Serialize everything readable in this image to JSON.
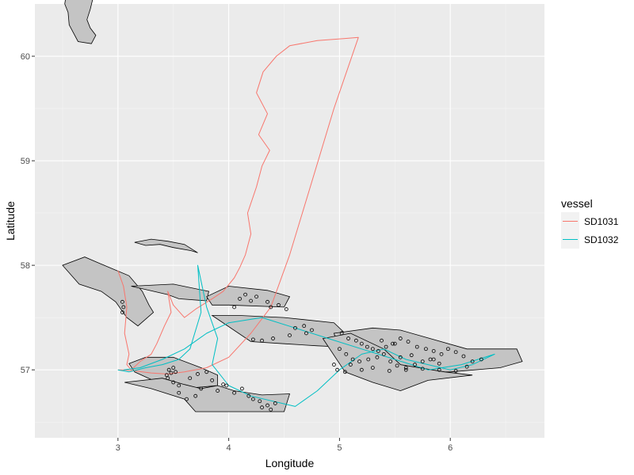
{
  "chart_data": {
    "type": "line",
    "title": "",
    "xlabel": "Longitude",
    "ylabel": "Latitude",
    "xlim": [
      2.25,
      6.85
    ],
    "ylim": [
      56.35,
      60.5
    ],
    "x_ticks": [
      3,
      4,
      5,
      6
    ],
    "x_tick_labels": [
      "3",
      "4",
      "5",
      "6"
    ],
    "y_ticks": [
      57,
      58,
      59,
      60
    ],
    "y_tick_labels": [
      "57",
      "58",
      "59",
      "60"
    ],
    "grid": true,
    "background": "#ebebeb",
    "legend": {
      "title": "vessel",
      "position": "right",
      "entries": [
        "SD1031",
        "SD1032"
      ]
    },
    "series": [
      {
        "name": "SD1031",
        "color": "#F8766D",
        "x": [
          3.0,
          3.05,
          3.08,
          3.06,
          3.1,
          3.08,
          3.12,
          3.2,
          3.3,
          3.35,
          3.42,
          3.48,
          3.45,
          3.5,
          3.6,
          3.7,
          3.85,
          3.95,
          4.05,
          4.1,
          4.15,
          4.2,
          4.17,
          4.25,
          4.3,
          4.37,
          4.27,
          4.35,
          4.25,
          4.31,
          4.43,
          4.55,
          4.8,
          5.05,
          5.17,
          4.95,
          4.75,
          4.55,
          4.38,
          4.2,
          4.0,
          3.8,
          3.6,
          3.45,
          3.3,
          3.15,
          3.05,
          3.0
        ],
        "y": [
          57.95,
          57.8,
          57.6,
          57.35,
          57.15,
          57.05,
          57.0,
          57.08,
          57.15,
          57.25,
          57.42,
          57.55,
          57.75,
          57.62,
          57.5,
          57.58,
          57.68,
          57.75,
          57.88,
          57.98,
          58.1,
          58.3,
          58.5,
          58.75,
          58.95,
          59.1,
          59.25,
          59.45,
          59.65,
          59.85,
          60.0,
          60.1,
          60.15,
          60.17,
          60.18,
          59.5,
          58.8,
          58.1,
          57.6,
          57.35,
          57.12,
          57.02,
          56.98,
          56.96,
          56.97,
          56.99,
          57.0,
          57.0
        ]
      },
      {
        "name": "SD1032",
        "color": "#00BFC4",
        "x": [
          3.0,
          3.1,
          3.25,
          3.4,
          3.55,
          3.65,
          3.75,
          3.72,
          3.8,
          3.9,
          3.85,
          4.0,
          4.2,
          4.4,
          4.6,
          4.8,
          5.0,
          5.2,
          5.4,
          5.6,
          5.8,
          6.0,
          6.2,
          6.4,
          6.1,
          5.8,
          5.5,
          5.2,
          4.9,
          4.6,
          4.3,
          4.0,
          3.8,
          3.6,
          3.4,
          3.2,
          3.05
        ],
        "y": [
          57.0,
          56.98,
          57.02,
          57.05,
          57.1,
          57.2,
          57.55,
          58.0,
          57.6,
          57.3,
          57.05,
          56.85,
          56.75,
          56.7,
          56.65,
          56.8,
          57.0,
          57.15,
          57.2,
          57.1,
          57.05,
          57.0,
          57.05,
          57.15,
          57.05,
          57.0,
          57.1,
          57.2,
          57.3,
          57.4,
          57.5,
          57.45,
          57.35,
          57.2,
          57.1,
          57.02,
          57.0
        ]
      }
    ],
    "polygons": [
      {
        "fill": "#c4c4c4",
        "x": [
          2.52,
          2.75,
          2.78,
          2.75,
          2.72,
          2.75,
          2.8,
          2.76,
          2.64,
          2.56,
          2.55,
          2.52,
          2.53
        ],
        "y": [
          60.57,
          60.67,
          60.58,
          60.45,
          60.35,
          60.27,
          60.2,
          60.12,
          60.14,
          60.3,
          60.42,
          60.5,
          60.57
        ]
      },
      {
        "fill": "#c4c4c4",
        "x": [
          2.5,
          2.7,
          2.92,
          3.1,
          3.22,
          3.28,
          3.32,
          3.18,
          3.08,
          2.98,
          2.85,
          2.65,
          2.5
        ],
        "y": [
          58.0,
          58.08,
          57.98,
          57.9,
          57.75,
          57.62,
          57.55,
          57.42,
          57.5,
          57.65,
          57.75,
          57.82,
          58.0
        ]
      },
      {
        "fill": "#c4c4c4",
        "x": [
          3.15,
          3.3,
          3.45,
          3.6,
          3.72,
          3.66,
          3.5,
          3.38,
          3.25,
          3.15
        ],
        "y": [
          58.22,
          58.25,
          58.23,
          58.2,
          58.12,
          58.14,
          58.17,
          58.2,
          58.19,
          58.22
        ]
      },
      {
        "fill": "#c4c4c4",
        "x": [
          3.12,
          3.5,
          3.82,
          3.8,
          3.55,
          3.45,
          3.12
        ],
        "y": [
          57.8,
          57.82,
          57.75,
          57.66,
          57.68,
          57.72,
          57.8
        ]
      },
      {
        "fill": "#c4c4c4",
        "x": [
          3.8,
          4.0,
          4.35,
          4.55,
          4.5,
          4.0,
          3.85,
          3.8
        ],
        "y": [
          57.7,
          57.8,
          57.76,
          57.7,
          57.6,
          57.62,
          57.62,
          57.7
        ]
      },
      {
        "fill": "#c4c4c4",
        "x": [
          3.85,
          4.1,
          4.5,
          4.95,
          5.05,
          5.0,
          4.8,
          4.5,
          4.2,
          3.85
        ],
        "y": [
          57.52,
          57.52,
          57.5,
          57.45,
          57.35,
          57.22,
          57.23,
          57.25,
          57.27,
          57.52
        ]
      },
      {
        "fill": "#c4c4c4",
        "x": [
          4.95,
          5.3,
          5.55,
          6.15,
          6.6,
          6.65,
          6.45,
          6.0,
          5.7,
          5.35,
          5.0,
          4.95
        ],
        "y": [
          57.35,
          57.4,
          57.38,
          57.2,
          57.2,
          57.08,
          57.02,
          56.98,
          56.98,
          57.05,
          57.2,
          57.35
        ]
      },
      {
        "fill": "#c4c4c4",
        "x": [
          4.85,
          5.1,
          5.4,
          5.55,
          5.95,
          6.2,
          5.8,
          5.55,
          5.3,
          5.05,
          4.85
        ],
        "y": [
          57.3,
          57.35,
          57.2,
          57.05,
          56.98,
          56.95,
          56.9,
          56.8,
          56.88,
          56.98,
          57.3
        ]
      },
      {
        "fill": "#c4c4c4",
        "x": [
          3.1,
          3.25,
          3.5,
          3.75,
          3.9,
          3.9,
          3.6,
          3.4,
          3.15,
          3.1
        ],
        "y": [
          57.06,
          57.12,
          57.12,
          57.02,
          56.95,
          56.85,
          56.82,
          56.86,
          56.98,
          57.06
        ]
      },
      {
        "fill": "#c4c4c4",
        "x": [
          3.06,
          3.4,
          3.6,
          3.75,
          3.9,
          4.05,
          4.3,
          4.55,
          4.5,
          4.1,
          3.7,
          3.6,
          3.3,
          3.06
        ],
        "y": [
          56.88,
          56.92,
          56.86,
          56.82,
          56.85,
          56.8,
          56.76,
          56.77,
          56.6,
          56.6,
          56.6,
          56.72,
          56.82,
          56.88
        ]
      }
    ],
    "points": {
      "x": [
        3.04,
        3.05,
        3.04,
        3.44,
        3.46,
        3.48,
        3.5,
        3.52,
        3.45,
        3.5,
        3.55,
        3.65,
        3.72,
        3.8,
        3.75,
        3.85,
        3.9,
        3.95,
        3.7,
        3.62,
        3.55,
        3.98,
        4.05,
        4.12,
        4.18,
        4.22,
        4.28,
        4.35,
        4.42,
        4.38,
        4.3,
        4.1,
        4.15,
        4.25,
        4.35,
        4.45,
        4.05,
        4.2,
        4.38,
        4.52,
        4.6,
        4.68,
        4.75,
        4.7,
        4.55,
        4.4,
        4.3,
        4.22,
        5.02,
        5.08,
        5.15,
        5.2,
        5.25,
        5.3,
        5.35,
        5.42,
        5.48,
        5.55,
        5.62,
        5.7,
        5.78,
        5.85,
        5.92,
        5.98,
        6.05,
        6.12,
        6.2,
        6.28,
        5.1,
        5.18,
        5.26,
        5.34,
        5.4,
        5.46,
        5.52,
        5.6,
        5.68,
        5.75,
        5.82,
        5.9,
        5.0,
        5.06,
        5.12,
        4.95,
        4.98,
        5.05,
        5.2,
        5.3,
        5.45,
        5.6,
        5.75,
        5.9,
        6.05,
        6.15,
        5.55,
        5.65,
        5.85,
        5.5,
        5.38
      ],
      "y": [
        57.65,
        57.6,
        57.55,
        56.95,
        57.0,
        56.97,
        57.02,
        56.98,
        56.92,
        56.88,
        56.85,
        56.92,
        56.96,
        56.98,
        56.82,
        56.9,
        56.8,
        56.86,
        56.75,
        56.72,
        56.78,
        56.85,
        56.78,
        56.82,
        56.75,
        56.72,
        56.7,
        56.66,
        56.68,
        56.62,
        56.64,
        57.68,
        57.72,
        57.7,
        57.65,
        57.62,
        57.6,
        57.66,
        57.6,
        57.58,
        57.4,
        57.42,
        57.38,
        57.35,
        57.33,
        57.3,
        57.28,
        57.29,
        57.35,
        57.3,
        57.28,
        57.25,
        57.22,
        57.2,
        57.18,
        57.22,
        57.25,
        57.3,
        57.27,
        57.22,
        57.2,
        57.18,
        57.15,
        57.2,
        57.17,
        57.13,
        57.08,
        57.1,
        57.05,
        57.08,
        57.1,
        57.12,
        57.15,
        57.08,
        57.04,
        57.02,
        57.05,
        57.08,
        57.1,
        57.06,
        57.2,
        57.15,
        57.1,
        57.05,
        57.0,
        56.98,
        57.0,
        57.02,
        56.99,
        57.0,
        57.01,
        57.0,
        56.99,
        57.03,
        57.12,
        57.14,
        57.1,
        57.25,
        57.28
      ]
    }
  }
}
